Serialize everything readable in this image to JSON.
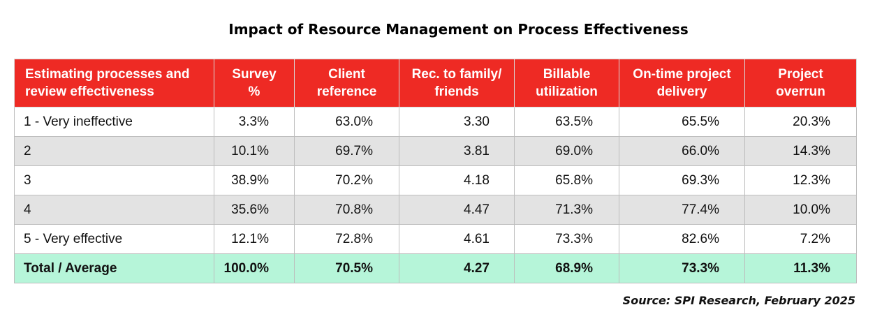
{
  "chart_data": {
    "type": "table",
    "title": "Impact of Resource Management on Process Effectiveness",
    "columns": [
      "Estimating processes and review effectiveness",
      "Survey %",
      "Client reference",
      "Rec. to family/ friends",
      "Billable utilization",
      "On-time project delivery",
      "Project overrun"
    ],
    "rows": [
      [
        "1 - Very ineffective",
        "3.3%",
        "63.0%",
        "3.30",
        "63.5%",
        "65.5%",
        "20.3%"
      ],
      [
        "2",
        "10.1%",
        "69.7%",
        "3.81",
        "69.0%",
        "66.0%",
        "14.3%"
      ],
      [
        "3",
        "38.9%",
        "70.2%",
        "4.18",
        "65.8%",
        "69.3%",
        "12.3%"
      ],
      [
        "4",
        "35.6%",
        "70.8%",
        "4.47",
        "71.3%",
        "77.4%",
        "10.0%"
      ],
      [
        "5 - Very effective",
        "12.1%",
        "72.8%",
        "4.61",
        "73.3%",
        "82.6%",
        "7.2%"
      ]
    ],
    "total_row": [
      "Total / Average",
      "100.0%",
      "70.5%",
      "4.27",
      "68.9%",
      "73.3%",
      "11.3%"
    ],
    "source": "Source: SPI Research, February 2025",
    "colors": {
      "header_bg": "#ee2a24",
      "header_text": "#ffffff",
      "row_alt_bg": "#e3e3e3",
      "total_bg": "#b6f5d9"
    }
  }
}
